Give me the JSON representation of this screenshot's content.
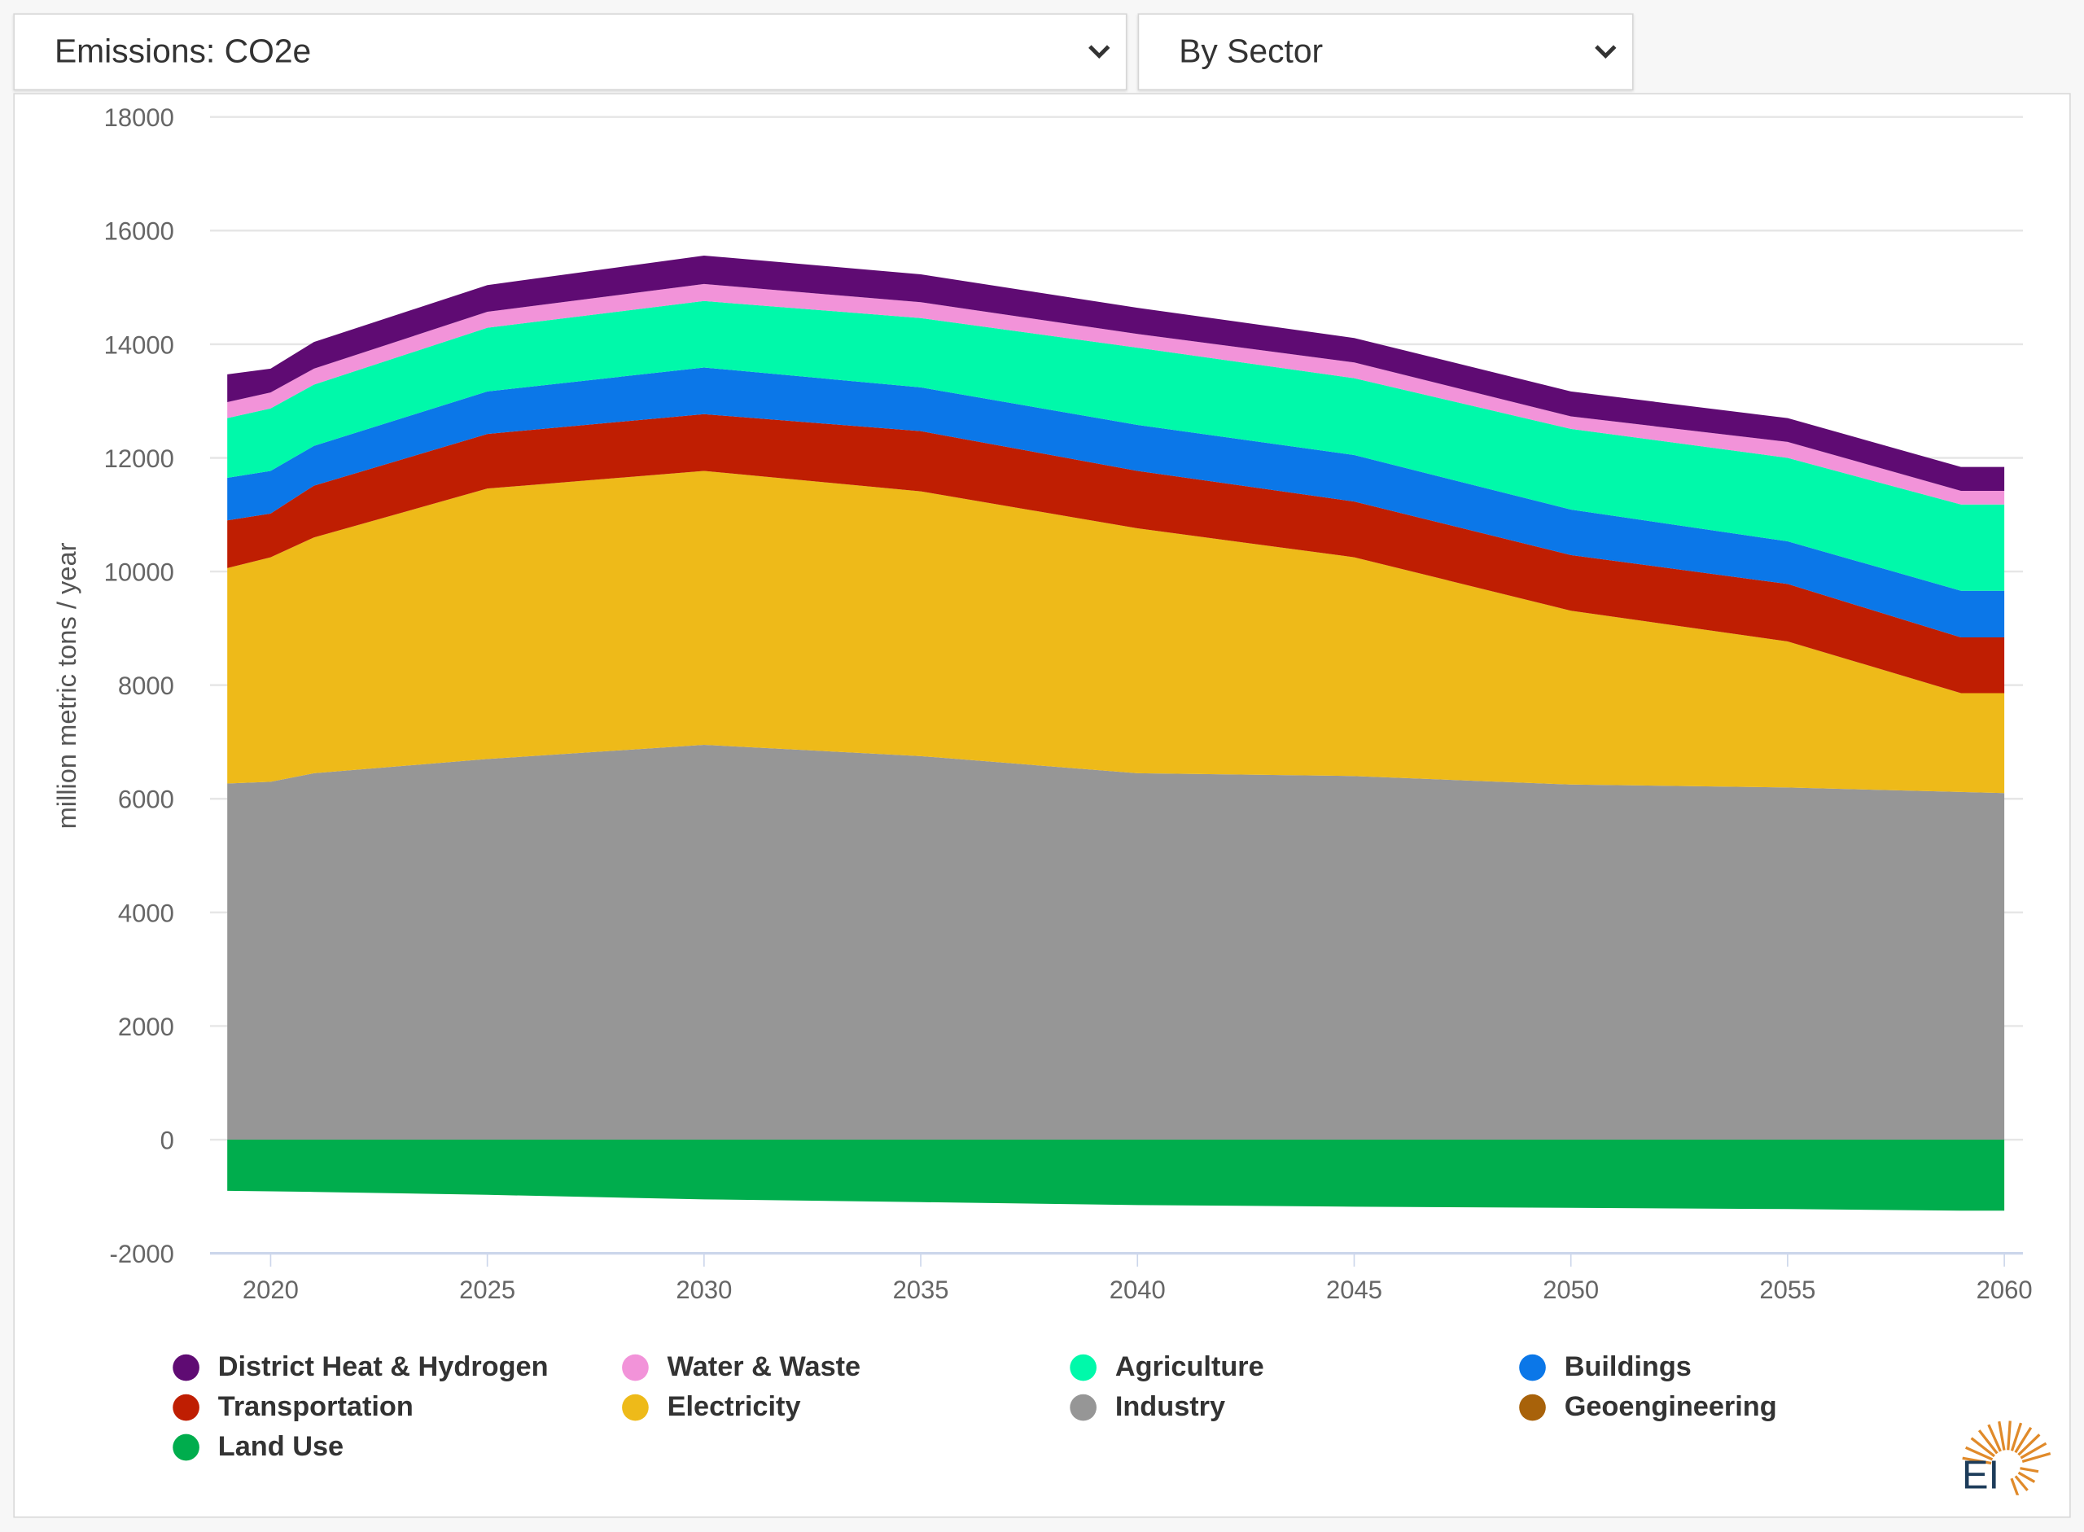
{
  "controls": {
    "metric_select": {
      "value": "Emissions: CO2e"
    },
    "grouping_select": {
      "value": "By Sector"
    }
  },
  "logo_text": "EI",
  "chart_data": {
    "type": "area",
    "stacked": true,
    "title": "",
    "xlabel": "",
    "ylabel": "million metric tons / year",
    "xlim": [
      2019,
      2060
    ],
    "ylim": [
      -2000,
      18000
    ],
    "x_ticks": [
      "2020",
      "2025",
      "2030",
      "2035",
      "2040",
      "2045",
      "2050",
      "2055",
      "2060"
    ],
    "y_ticks": [
      "18000",
      "16000",
      "14000",
      "12000",
      "10000",
      "8000",
      "6000",
      "4000",
      "2000",
      "0",
      "-2000"
    ],
    "grid": "horizontal",
    "legend_position": "bottom",
    "x": [
      2019,
      2020,
      2021,
      2025,
      2030,
      2035,
      2040,
      2045,
      2050,
      2055,
      2059,
      2060
    ],
    "series": [
      {
        "name": "Industry",
        "color": "#969696",
        "values": [
          6270,
          6300,
          6450,
          6700,
          6950,
          6750,
          6450,
          6400,
          6250,
          6200,
          6120,
          6100
        ]
      },
      {
        "name": "Electricity",
        "color": "#eeba19",
        "values": [
          3790,
          3950,
          4150,
          4760,
          4820,
          4660,
          4310,
          3850,
          3060,
          2570,
          1740,
          1760
        ]
      },
      {
        "name": "Transportation",
        "color": "#bf1e02",
        "values": [
          840,
          770,
          910,
          960,
          1000,
          1060,
          1010,
          980,
          980,
          1010,
          980,
          980
        ]
      },
      {
        "name": "Buildings",
        "color": "#0b77e8",
        "values": [
          750,
          750,
          700,
          750,
          820,
          770,
          810,
          820,
          800,
          750,
          820,
          820
        ]
      },
      {
        "name": "Agriculture",
        "color": "#00f9aa",
        "values": [
          1050,
          1100,
          1080,
          1120,
          1170,
          1220,
          1360,
          1350,
          1420,
          1470,
          1520,
          1520
        ]
      },
      {
        "name": "Water & Waste",
        "color": "#f293d9",
        "values": [
          280,
          280,
          280,
          280,
          300,
          280,
          240,
          280,
          220,
          280,
          240,
          240
        ]
      },
      {
        "name": "District Heat & Hydrogen",
        "color": "#5f0b73",
        "values": [
          490,
          420,
          470,
          470,
          500,
          490,
          460,
          430,
          440,
          420,
          420,
          420
        ]
      },
      {
        "name": "Geoengineering",
        "color": "#a8620a",
        "values": [
          0,
          0,
          0,
          0,
          0,
          0,
          0,
          0,
          0,
          0,
          0,
          0
        ]
      },
      {
        "name": "Land Use",
        "color": "#00ad4d",
        "values": [
          -900,
          -910,
          -920,
          -970,
          -1050,
          -1100,
          -1150,
          -1180,
          -1200,
          -1220,
          -1250,
          -1250
        ]
      }
    ],
    "legend": [
      "District Heat & Hydrogen",
      "Water & Waste",
      "Agriculture",
      "Buildings",
      "Transportation",
      "Electricity",
      "Industry",
      "Geoengineering",
      "Land Use"
    ]
  }
}
